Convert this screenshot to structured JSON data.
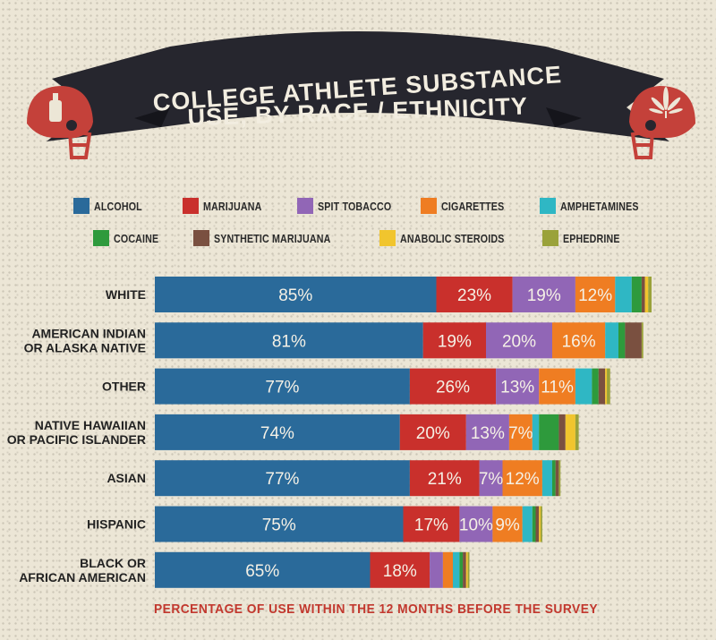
{
  "title_lines": [
    "COLLEGE ATHLETE SUBSTANCE",
    "USE, BY RACE / ETHNICITY"
  ],
  "colors": {
    "banner": "#26262e",
    "helmet": "#c4413a",
    "background": "#ece6d6",
    "footnote": "#c2382e"
  },
  "icons": {
    "left_helmet": "bottle-icon",
    "right_helmet": "cannabis-leaf-icon"
  },
  "legend": [
    {
      "label": "ALCOHOL",
      "color": "#2a6a9a"
    },
    {
      "label": "MARIJUANA",
      "color": "#c9302c"
    },
    {
      "label": "SPIT TOBACCO",
      "color": "#9166b6"
    },
    {
      "label": "CIGARETTES",
      "color": "#ef7d22"
    },
    {
      "label": "AMPHETAMINES",
      "color": "#2fb7c4"
    },
    {
      "label": "COCAINE",
      "color": "#2e9a3c"
    },
    {
      "label": "SYNTHETIC MARIJUANA",
      "color": "#7a5040"
    },
    {
      "label": "ANABOLIC STEROIDS",
      "color": "#f1c52e"
    },
    {
      "label": "EPHEDRINE",
      "color": "#9aa23a"
    }
  ],
  "footnote": "PERCENTAGE OF USE WITHIN THE 12 MONTHS BEFORE THE SURVEY",
  "chart_data": {
    "type": "bar",
    "orientation": "horizontal",
    "stacked": true,
    "categories": [
      [
        "WHITE"
      ],
      [
        "AMERICAN INDIAN",
        "OR ALASKA NATIVE"
      ],
      [
        "OTHER"
      ],
      [
        "NATIVE HAWAIIAN",
        "OR PACIFIC ISLANDER"
      ],
      [
        "ASIAN"
      ],
      [
        "HISPANIC"
      ],
      [
        "BLACK OR",
        "AFRICAN AMERICAN"
      ]
    ],
    "series": [
      {
        "name": "ALCOHOL",
        "values": [
          85,
          81,
          77,
          74,
          77,
          75,
          65
        ],
        "labels": [
          "85%",
          "81%",
          "77%",
          "74%",
          "77%",
          "75%",
          "65%"
        ]
      },
      {
        "name": "MARIJUANA",
        "values": [
          23,
          19,
          26,
          20,
          21,
          17,
          18
        ],
        "labels": [
          "23%",
          "19%",
          "26%",
          "20%",
          "21%",
          "17%",
          "18%"
        ]
      },
      {
        "name": "SPIT TOBACCO",
        "values": [
          19,
          20,
          13,
          13,
          7,
          10,
          4
        ],
        "labels": [
          "19%",
          "20%",
          "13%",
          "13%",
          "7%",
          "10%",
          ""
        ]
      },
      {
        "name": "CIGARETTES",
        "values": [
          12,
          16,
          11,
          7,
          12,
          9,
          3
        ],
        "labels": [
          "12%",
          "16%",
          "11%",
          "7%",
          "12%",
          "9%",
          ""
        ]
      },
      {
        "name": "AMPHETAMINES",
        "values": [
          5,
          4,
          5,
          2,
          3,
          3,
          2
        ],
        "labels": [
          "",
          "",
          "",
          "",
          "",
          "",
          ""
        ]
      },
      {
        "name": "COCAINE",
        "values": [
          3,
          2,
          2,
          6,
          1,
          1,
          1
        ],
        "labels": [
          "",
          "",
          "",
          "",
          "",
          "",
          ""
        ]
      },
      {
        "name": "SYNTHETIC MARIJUANA",
        "values": [
          1,
          5,
          2,
          2,
          1,
          1,
          1
        ],
        "labels": [
          "",
          "",
          "",
          "",
          "",
          "",
          ""
        ]
      },
      {
        "name": "ANABOLIC STEROIDS",
        "values": [
          1,
          0,
          0.5,
          3,
          0,
          0.5,
          0.5
        ],
        "labels": [
          "",
          "",
          "",
          "",
          "",
          "",
          ""
        ]
      },
      {
        "name": "EPHEDRINE",
        "values": [
          1,
          0.5,
          1,
          1,
          0.5,
          0.5,
          0.5
        ],
        "labels": [
          "",
          "",
          "",
          "",
          "",
          "",
          ""
        ]
      }
    ]
  }
}
